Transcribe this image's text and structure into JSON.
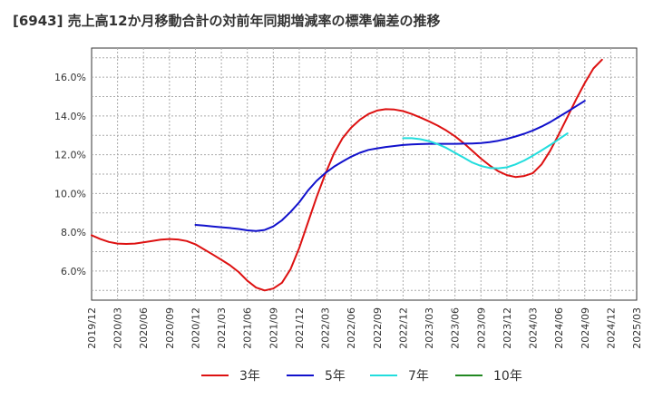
{
  "chart_data": {
    "type": "line",
    "title": "[6943]  売上高12か月移動合計の対前年同期増減率の標準偏差の推移",
    "xlabel": "",
    "ylabel": "",
    "x_ticks": [
      "2019/12",
      "2020/03",
      "2020/06",
      "2020/09",
      "2020/12",
      "2021/03",
      "2021/06",
      "2021/09",
      "2021/12",
      "2022/03",
      "2022/06",
      "2022/09",
      "2022/12",
      "2023/03",
      "2023/06",
      "2023/09",
      "2023/12",
      "2024/03",
      "2024/06",
      "2024/09",
      "2024/12",
      "2025/03"
    ],
    "y_ticks": [
      "6.0%",
      "8.0%",
      "10.0%",
      "12.0%",
      "14.0%",
      "16.0%"
    ],
    "y_tick_values": [
      6,
      8,
      10,
      12,
      14,
      16
    ],
    "xlim_month_index": [
      0,
      63
    ],
    "ylim": [
      4.5,
      17.5
    ],
    "grid": true,
    "legend_position": "bottom-center",
    "series": [
      {
        "name": "3年",
        "color": "#dd1111",
        "points": [
          [
            0,
            7.85
          ],
          [
            1,
            7.65
          ],
          [
            2,
            7.5
          ],
          [
            3,
            7.42
          ],
          [
            4,
            7.4
          ],
          [
            5,
            7.42
          ],
          [
            6,
            7.48
          ],
          [
            7,
            7.55
          ],
          [
            8,
            7.62
          ],
          [
            9,
            7.65
          ],
          [
            10,
            7.63
          ],
          [
            11,
            7.55
          ],
          [
            12,
            7.38
          ],
          [
            13,
            7.12
          ],
          [
            14,
            6.85
          ],
          [
            15,
            6.58
          ],
          [
            16,
            6.3
          ],
          [
            17,
            5.95
          ],
          [
            18,
            5.5
          ],
          [
            19,
            5.15
          ],
          [
            20,
            5.0
          ],
          [
            21,
            5.1
          ],
          [
            22,
            5.4
          ],
          [
            23,
            6.1
          ],
          [
            24,
            7.2
          ],
          [
            25,
            8.5
          ],
          [
            26,
            9.8
          ],
          [
            27,
            11.0
          ],
          [
            28,
            12.05
          ],
          [
            29,
            12.85
          ],
          [
            30,
            13.4
          ],
          [
            31,
            13.8
          ],
          [
            32,
            14.1
          ],
          [
            33,
            14.28
          ],
          [
            34,
            14.35
          ],
          [
            35,
            14.33
          ],
          [
            36,
            14.25
          ],
          [
            37,
            14.1
          ],
          [
            38,
            13.92
          ],
          [
            39,
            13.72
          ],
          [
            40,
            13.5
          ],
          [
            41,
            13.25
          ],
          [
            42,
            12.95
          ],
          [
            43,
            12.6
          ],
          [
            44,
            12.2
          ],
          [
            45,
            11.8
          ],
          [
            46,
            11.45
          ],
          [
            47,
            11.15
          ],
          [
            48,
            10.95
          ],
          [
            49,
            10.85
          ],
          [
            50,
            10.9
          ],
          [
            51,
            11.05
          ],
          [
            52,
            11.5
          ],
          [
            53,
            12.2
          ],
          [
            54,
            13.05
          ],
          [
            55,
            13.95
          ],
          [
            56,
            14.85
          ],
          [
            57,
            15.7
          ],
          [
            58,
            16.45
          ],
          [
            59,
            16.9
          ]
        ]
      },
      {
        "name": "5年",
        "color": "#1111cc",
        "points": [
          [
            12,
            8.38
          ],
          [
            13,
            8.35
          ],
          [
            14,
            8.3
          ],
          [
            15,
            8.26
          ],
          [
            16,
            8.22
          ],
          [
            17,
            8.17
          ],
          [
            18,
            8.1
          ],
          [
            19,
            8.07
          ],
          [
            20,
            8.12
          ],
          [
            21,
            8.3
          ],
          [
            22,
            8.62
          ],
          [
            23,
            9.05
          ],
          [
            24,
            9.55
          ],
          [
            25,
            10.15
          ],
          [
            26,
            10.65
          ],
          [
            27,
            11.05
          ],
          [
            28,
            11.38
          ],
          [
            29,
            11.65
          ],
          [
            30,
            11.9
          ],
          [
            31,
            12.1
          ],
          [
            32,
            12.25
          ],
          [
            33,
            12.33
          ],
          [
            34,
            12.4
          ],
          [
            35,
            12.45
          ],
          [
            36,
            12.5
          ],
          [
            37,
            12.53
          ],
          [
            38,
            12.55
          ],
          [
            39,
            12.56
          ],
          [
            40,
            12.56
          ],
          [
            41,
            12.56
          ],
          [
            42,
            12.56
          ],
          [
            43,
            12.57
          ],
          [
            44,
            12.58
          ],
          [
            45,
            12.6
          ],
          [
            46,
            12.65
          ],
          [
            47,
            12.72
          ],
          [
            48,
            12.82
          ],
          [
            49,
            12.94
          ],
          [
            50,
            13.08
          ],
          [
            51,
            13.25
          ],
          [
            52,
            13.45
          ],
          [
            53,
            13.68
          ],
          [
            54,
            13.95
          ],
          [
            55,
            14.22
          ],
          [
            56,
            14.5
          ],
          [
            57,
            14.78
          ]
        ]
      },
      {
        "name": "7年",
        "color": "#22dddd",
        "points": [
          [
            36,
            12.85
          ],
          [
            37,
            12.85
          ],
          [
            38,
            12.8
          ],
          [
            39,
            12.7
          ],
          [
            40,
            12.55
          ],
          [
            41,
            12.35
          ],
          [
            42,
            12.1
          ],
          [
            43,
            11.85
          ],
          [
            44,
            11.6
          ],
          [
            45,
            11.42
          ],
          [
            46,
            11.32
          ],
          [
            47,
            11.3
          ],
          [
            48,
            11.35
          ],
          [
            49,
            11.5
          ],
          [
            50,
            11.7
          ],
          [
            51,
            11.95
          ],
          [
            52,
            12.22
          ],
          [
            53,
            12.5
          ],
          [
            54,
            12.8
          ],
          [
            55,
            13.1
          ]
        ]
      },
      {
        "name": "10年",
        "color": "#228822",
        "points": []
      }
    ]
  }
}
